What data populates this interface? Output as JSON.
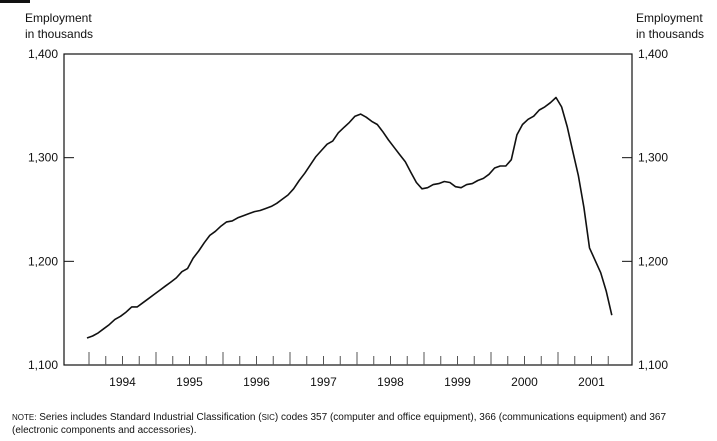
{
  "chart_data": {
    "type": "line",
    "title": "",
    "ylabel_left": [
      "Employment",
      "in thousands"
    ],
    "ylabel_right": [
      "Employment",
      "in thousands"
    ],
    "xlabel": "",
    "ylim": [
      1100,
      1400
    ],
    "yticks": [
      1100,
      1200,
      1300,
      1400
    ],
    "ytick_labels": [
      "1,100",
      "1,200",
      "1,300",
      "1,400"
    ],
    "xtick_labels": [
      "1994",
      "1995",
      "1996",
      "1997",
      "1998",
      "1999",
      "2000",
      "2001"
    ],
    "xlim": [
      "1994-01",
      "2001-12"
    ],
    "minor_ticks": "quarterly",
    "grid": false,
    "line_color": "#111111",
    "start": "1994-01",
    "frequency": "monthly",
    "values": [
      1126,
      1128,
      1131,
      1135,
      1139,
      1144,
      1147,
      1151,
      1156,
      1156,
      1160,
      1164,
      1168,
      1172,
      1176,
      1180,
      1184,
      1190,
      1193,
      1203,
      1210,
      1218,
      1225,
      1229,
      1234,
      1238,
      1239,
      1242,
      1244,
      1246,
      1248,
      1249,
      1251,
      1253,
      1256,
      1260,
      1264,
      1270,
      1278,
      1285,
      1293,
      1301,
      1307,
      1313,
      1316,
      1324,
      1329,
      1334,
      1340,
      1342,
      1339,
      1335,
      1332,
      1325,
      1317,
      1310,
      1303,
      1296,
      1286,
      1276,
      1270,
      1271,
      1274,
      1275,
      1277,
      1276,
      1272,
      1271,
      1274,
      1275,
      1278,
      1280,
      1284,
      1290,
      1292,
      1292,
      1298,
      1322,
      1332,
      1337,
      1340,
      1346,
      1349,
      1353,
      1358,
      1349,
      1330,
      1306,
      1283,
      1252,
      1213,
      1201,
      1189,
      1171,
      1148
    ]
  },
  "note": {
    "label": "Note:",
    "text_1": " Series includes Standard Industrial Classification (",
    "sic": "sic",
    "text_2": ") codes 357 (computer and office equipment), 366 (communications equipment) and 367 (electronic components and accessories)."
  }
}
